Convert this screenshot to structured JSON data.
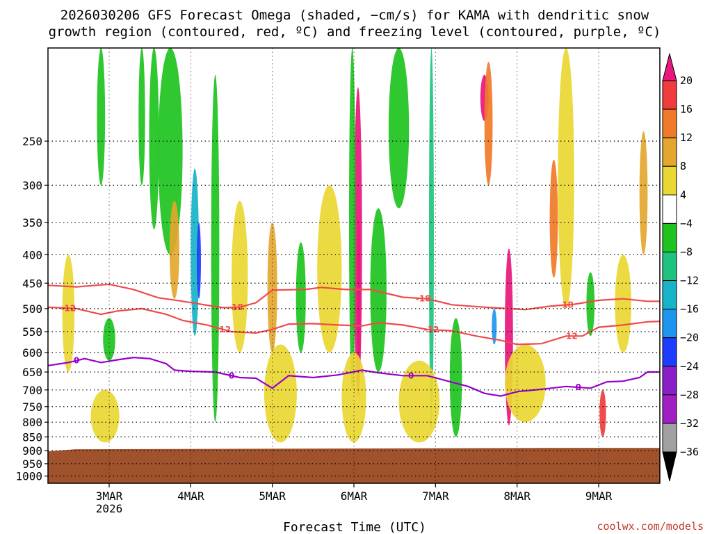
{
  "chart_data": {
    "type": "heatmap",
    "title_line1": "2026030206 GFS Forecast Omega (shaded, −cm/s) for KAMA with dendritic snow",
    "title_line2": "growth region (contoured, red, ºC) and freezing level (contoured, purple, ºC)",
    "xlabel": "Forecast Time (UTC)",
    "credit": "coolwx.com/models",
    "x_range_days": [
      2.25,
      9.75
    ],
    "y_range_hpa": [
      170,
      1030
    ],
    "y_ticks": [
      250,
      300,
      350,
      400,
      450,
      500,
      550,
      600,
      650,
      700,
      750,
      800,
      850,
      900,
      950,
      1000
    ],
    "x_ticks": [
      {
        "day": 3,
        "label": "3MAR",
        "sub": "2026"
      },
      {
        "day": 4,
        "label": "4MAR",
        "sub": ""
      },
      {
        "day": 5,
        "label": "5MAR",
        "sub": ""
      },
      {
        "day": 6,
        "label": "6MAR",
        "sub": ""
      },
      {
        "day": 7,
        "label": "7MAR",
        "sub": ""
      },
      {
        "day": 8,
        "label": "8MAR",
        "sub": ""
      },
      {
        "day": 9,
        "label": "9MAR",
        "sub": ""
      }
    ],
    "colorbar": [
      {
        "label": "20",
        "color": "#e8177d"
      },
      {
        "label": "16",
        "color": "#f03c3c"
      },
      {
        "label": "12",
        "color": "#f07a28"
      },
      {
        "label": "8",
        "color": "#e3a72f"
      },
      {
        "label": "4",
        "color": "#ead732"
      },
      {
        "label": "−4",
        "color": "#ffffff"
      },
      {
        "label": "−8",
        "color": "#1ec31e"
      },
      {
        "label": "−12",
        "color": "#1fc380"
      },
      {
        "label": "−16",
        "color": "#17b3c8"
      },
      {
        "label": "−20",
        "color": "#1e96f0"
      },
      {
        "label": "−24",
        "color": "#1e3cff"
      },
      {
        "label": "−28",
        "color": "#8a1ec8"
      },
      {
        "label": "−32",
        "color": "#a01ec3"
      },
      {
        "label": "−36",
        "color": "#a0a0a0"
      }
    ],
    "colorbar_top_arrow_color": "#e8177d",
    "colorbar_bottom_arrow_color": "#000000",
    "ground_color": "#a0522d",
    "contours": [
      {
        "name": "-18C",
        "label": "-18",
        "color": "#f04a4a",
        "points": [
          [
            2.25,
            454
          ],
          [
            2.6,
            457
          ],
          [
            3.0,
            452
          ],
          [
            3.3,
            462
          ],
          [
            3.6,
            478
          ],
          [
            3.9,
            485
          ],
          [
            4.2,
            493
          ],
          [
            4.4,
            498
          ],
          [
            4.6,
            497
          ],
          [
            4.8,
            488
          ],
          [
            5.0,
            463
          ],
          [
            5.4,
            462
          ],
          [
            5.6,
            458
          ],
          [
            5.9,
            462
          ],
          [
            6.2,
            462
          ],
          [
            6.6,
            477
          ],
          [
            6.9,
            480
          ],
          [
            7.2,
            492
          ],
          [
            7.6,
            497
          ],
          [
            7.9,
            500
          ],
          [
            8.1,
            502
          ],
          [
            8.4,
            495
          ],
          [
            8.7,
            491
          ],
          [
            9.0,
            483
          ],
          [
            9.3,
            480
          ],
          [
            9.6,
            485
          ],
          [
            9.75,
            485
          ]
        ],
        "labels": [
          [
            4.55,
            "-18"
          ],
          [
            6.85,
            "-18"
          ],
          [
            8.6,
            "-18"
          ]
        ]
      },
      {
        "name": "-12C",
        "label": "-12",
        "color": "#f04a4a",
        "points": [
          [
            2.25,
            497
          ],
          [
            2.6,
            500
          ],
          [
            2.9,
            512
          ],
          [
            3.1,
            505
          ],
          [
            3.4,
            500
          ],
          [
            3.7,
            512
          ],
          [
            3.9,
            525
          ],
          [
            4.2,
            535
          ],
          [
            4.5,
            550
          ],
          [
            4.8,
            553
          ],
          [
            5.0,
            545
          ],
          [
            5.2,
            533
          ],
          [
            5.5,
            532
          ],
          [
            5.8,
            535
          ],
          [
            6.1,
            537
          ],
          [
            6.3,
            530
          ],
          [
            6.6,
            535
          ],
          [
            6.9,
            545
          ],
          [
            7.2,
            548
          ],
          [
            7.5,
            560
          ],
          [
            7.8,
            570
          ],
          [
            8.0,
            580
          ],
          [
            8.3,
            578
          ],
          [
            8.6,
            560
          ],
          [
            8.8,
            560
          ],
          [
            9.0,
            540
          ],
          [
            9.3,
            535
          ],
          [
            9.6,
            528
          ],
          [
            9.75,
            527
          ]
        ],
        "labels": [
          [
            2.5,
            "-12"
          ],
          [
            4.4,
            "-12"
          ],
          [
            6.95,
            "-12"
          ],
          [
            8.65,
            "-12"
          ]
        ]
      },
      {
        "name": "0C",
        "label": "0",
        "color": "#9900cc",
        "points": [
          [
            2.25,
            633
          ],
          [
            2.5,
            625
          ],
          [
            2.7,
            615
          ],
          [
            2.9,
            625
          ],
          [
            3.1,
            618
          ],
          [
            3.3,
            612
          ],
          [
            3.5,
            615
          ],
          [
            3.7,
            628
          ],
          [
            3.8,
            645
          ],
          [
            4.0,
            648
          ],
          [
            4.3,
            650
          ],
          [
            4.6,
            665
          ],
          [
            4.8,
            667
          ],
          [
            5.0,
            695
          ],
          [
            5.2,
            660
          ],
          [
            5.5,
            665
          ],
          [
            5.8,
            658
          ],
          [
            6.1,
            645
          ],
          [
            6.3,
            652
          ],
          [
            6.6,
            660
          ],
          [
            6.9,
            660
          ],
          [
            7.1,
            672
          ],
          [
            7.4,
            690
          ],
          [
            7.6,
            710
          ],
          [
            7.8,
            718
          ],
          [
            8.0,
            705
          ],
          [
            8.3,
            698
          ],
          [
            8.6,
            690
          ],
          [
            8.9,
            695
          ],
          [
            9.1,
            677
          ],
          [
            9.3,
            675
          ],
          [
            9.5,
            665
          ],
          [
            9.6,
            650
          ],
          [
            9.75,
            650
          ]
        ],
        "labels": [
          [
            2.6,
            "0"
          ],
          [
            4.5,
            "0"
          ],
          [
            6.7,
            "0"
          ],
          [
            8.75,
            "0"
          ]
        ]
      }
    ],
    "omega_blobs": [
      {
        "day": 3.95,
        "w": 0.22,
        "top": 190,
        "bottom": 610,
        "level": 5
      },
      {
        "day": 4.05,
        "w": 0.1,
        "top": 280,
        "bottom": 560,
        "level": 8
      },
      {
        "day": 4.1,
        "w": 0.05,
        "top": 350,
        "bottom": 480,
        "level": 10
      },
      {
        "day": 3.75,
        "w": 0.3,
        "top": 170,
        "bottom": 400,
        "level": 6
      },
      {
        "day": 3.55,
        "w": 0.12,
        "top": 170,
        "bottom": 360,
        "level": 6
      },
      {
        "day": 4.3,
        "w": 0.1,
        "top": 190,
        "bottom": 800,
        "level": 6
      },
      {
        "day": 3.4,
        "w": 0.08,
        "top": 170,
        "bottom": 300,
        "level": 6
      },
      {
        "day": 6.05,
        "w": 0.1,
        "top": 200,
        "bottom": 720,
        "level": 0
      },
      {
        "day": 6.06,
        "w": 0.04,
        "top": 350,
        "bottom": 720,
        "level": 0
      },
      {
        "day": 5.98,
        "w": 0.08,
        "top": 170,
        "bottom": 700,
        "level": 6
      },
      {
        "day": 7.9,
        "w": 0.1,
        "top": 390,
        "bottom": 810,
        "level": 0
      },
      {
        "day": 7.72,
        "w": 0.06,
        "top": 500,
        "bottom": 580,
        "level": 9
      },
      {
        "day": 6.95,
        "w": 0.06,
        "top": 170,
        "bottom": 820,
        "level": 7
      },
      {
        "day": 7.6,
        "w": 0.1,
        "top": 190,
        "bottom": 230,
        "level": 0
      },
      {
        "day": 7.65,
        "w": 0.1,
        "top": 180,
        "bottom": 300,
        "level": 2
      },
      {
        "day": 8.45,
        "w": 0.1,
        "top": 270,
        "bottom": 440,
        "level": 2
      },
      {
        "day": 9.55,
        "w": 0.1,
        "top": 240,
        "bottom": 400,
        "level": 3
      },
      {
        "day": 9.05,
        "w": 0.08,
        "top": 700,
        "bottom": 850,
        "level": 1
      },
      {
        "day": 5.1,
        "w": 0.4,
        "top": 580,
        "bottom": 870,
        "level": 4
      },
      {
        "day": 5.0,
        "w": 0.12,
        "top": 350,
        "bottom": 600,
        "level": 3
      },
      {
        "day": 3.8,
        "w": 0.12,
        "top": 320,
        "bottom": 480,
        "level": 3
      },
      {
        "day": 2.95,
        "w": 0.35,
        "top": 700,
        "bottom": 870,
        "level": 4
      },
      {
        "day": 6.0,
        "w": 0.3,
        "top": 600,
        "bottom": 870,
        "level": 4
      },
      {
        "day": 6.8,
        "w": 0.5,
        "top": 620,
        "bottom": 870,
        "level": 4
      },
      {
        "day": 5.7,
        "w": 0.3,
        "top": 300,
        "bottom": 600,
        "level": 4
      },
      {
        "day": 8.1,
        "w": 0.5,
        "top": 580,
        "bottom": 800,
        "level": 4
      },
      {
        "day": 8.6,
        "w": 0.2,
        "top": 170,
        "bottom": 500,
        "level": 4
      },
      {
        "day": 9.3,
        "w": 0.2,
        "top": 400,
        "bottom": 600,
        "level": 4
      },
      {
        "day": 2.5,
        "w": 0.15,
        "top": 400,
        "bottom": 650,
        "level": 4
      },
      {
        "day": 4.6,
        "w": 0.2,
        "top": 320,
        "bottom": 600,
        "level": 4
      },
      {
        "day": 6.55,
        "w": 0.25,
        "top": 170,
        "bottom": 330,
        "level": 6
      },
      {
        "day": 6.3,
        "w": 0.2,
        "top": 330,
        "bottom": 650,
        "level": 6
      },
      {
        "day": 7.25,
        "w": 0.15,
        "top": 520,
        "bottom": 850,
        "level": 6
      },
      {
        "day": 8.9,
        "w": 0.1,
        "top": 430,
        "bottom": 560,
        "level": 6
      },
      {
        "day": 5.35,
        "w": 0.12,
        "top": 380,
        "bottom": 600,
        "level": 6
      },
      {
        "day": 2.9,
        "w": 0.1,
        "top": 170,
        "bottom": 300,
        "level": 6
      },
      {
        "day": 3.0,
        "w": 0.15,
        "top": 520,
        "bottom": 620,
        "level": 6
      }
    ]
  }
}
